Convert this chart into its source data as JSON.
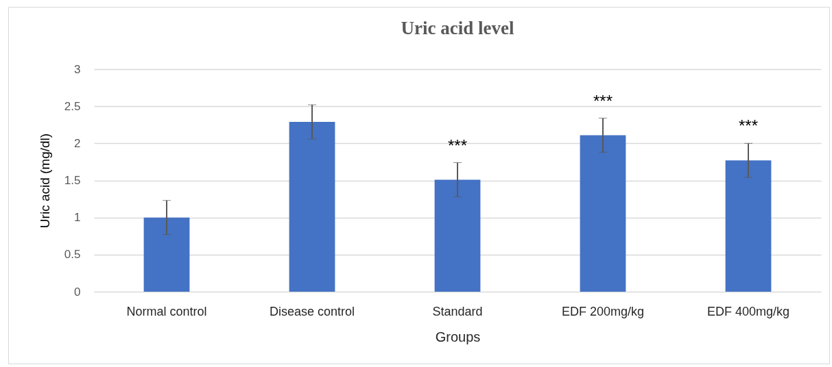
{
  "chart_data": {
    "type": "bar",
    "title": "Uric acid level",
    "xlabel": "Groups",
    "ylabel": "Uric acid (mg/dl)",
    "categories": [
      "Normal control",
      "Disease control",
      "Standard",
      "EDF 200mg/kg",
      "EDF 400mg/kg"
    ],
    "series": [
      {
        "color": "#4472c4",
        "values": [
          1.0,
          2.29,
          1.51,
          2.11,
          1.77
        ],
        "errors": [
          0.23,
          0.23,
          0.23,
          0.23,
          0.23
        ]
      }
    ],
    "ylim": [
      0,
      3
    ],
    "yticks": [
      0,
      0.5,
      1,
      1.5,
      2,
      2.5,
      3
    ],
    "grid": "y",
    "annotations": [
      {
        "text": "***",
        "x": "Standard",
        "y": 1.51
      },
      {
        "text": "***",
        "x": "EDF 200mg/kg",
        "y": 2.11
      },
      {
        "text": "***",
        "x": "EDF 400mg/kg",
        "y": 1.77
      }
    ]
  }
}
